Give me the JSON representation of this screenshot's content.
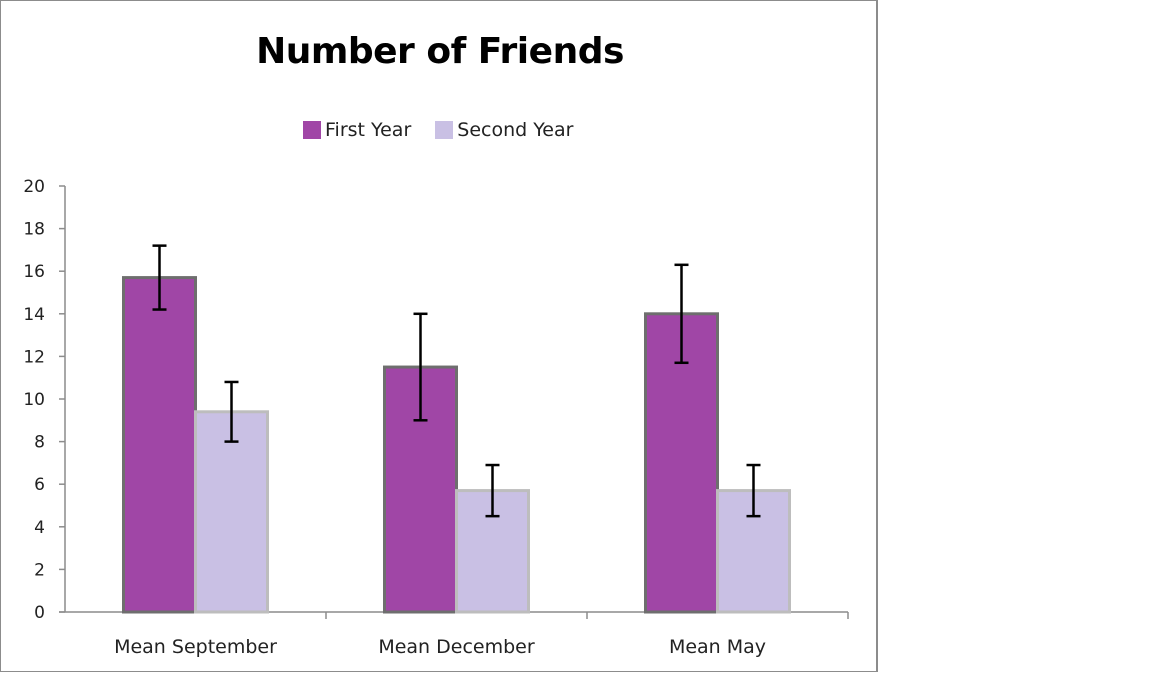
{
  "chart_data": {
    "type": "bar",
    "title": "Number of Friends",
    "xlabel": "",
    "ylabel": "",
    "categories": [
      "Mean September",
      "Mean December",
      "Mean May"
    ],
    "series": [
      {
        "name": "First Year",
        "color": "#a046a6",
        "values": [
          15.7,
          11.5,
          14.0
        ],
        "error": [
          1.5,
          2.5,
          2.3
        ]
      },
      {
        "name": "Second Year",
        "color": "#c9c0e4",
        "values": [
          9.4,
          5.7,
          5.7
        ],
        "error": [
          1.4,
          1.2,
          1.2
        ]
      }
    ],
    "ylim": [
      0,
      20
    ],
    "yticks": [
      "0",
      "2",
      "4",
      "6",
      "8",
      "10",
      "12",
      "14",
      "16",
      "18",
      "20"
    ],
    "legend_position": "top",
    "grid": false
  }
}
